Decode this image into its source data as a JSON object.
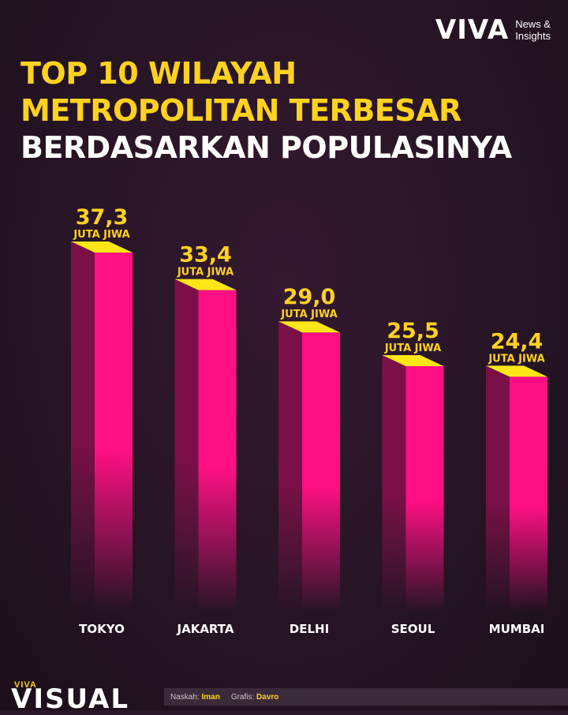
{
  "brand": {
    "logo": "VIVA",
    "logo_sub_1": "News &",
    "logo_sub_2": "Insights"
  },
  "title": {
    "line1": "TOP 10 WILAYAH",
    "line2": "METROPOLITAN TERBESAR",
    "line3": "BERDASARKAN POPULASINYA"
  },
  "colors": {
    "bar_front": "#ff0f83",
    "bar_side": "#7a1047",
    "bar_top": "#ffe617",
    "value_text": "#ffd21f",
    "category_text": "#ffffff"
  },
  "chart_data": {
    "type": "bar",
    "categories": [
      "TOKYO",
      "JAKARTA",
      "DELHI",
      "SEOUL",
      "MUMBAI"
    ],
    "values": [
      37.3,
      33.4,
      29.0,
      25.5,
      24.4
    ],
    "value_labels": [
      "37,3",
      "33,4",
      "29,0",
      "25,5",
      "24,4"
    ],
    "unit_label": "JUTA JIWA",
    "title": "TOP 10 WILAYAH METROPOLITAN TERBESAR BERDASARKAN POPULASINYA",
    "xlabel": "",
    "ylabel": "",
    "grid": false,
    "legend": "none"
  },
  "footer": {
    "brand_small": "VIVA",
    "brand_big": "VISUAL",
    "naskah_label": "Naskah:",
    "naskah_value": "Iman",
    "grafis_label": "Grafis:",
    "grafis_value": "Davro"
  }
}
